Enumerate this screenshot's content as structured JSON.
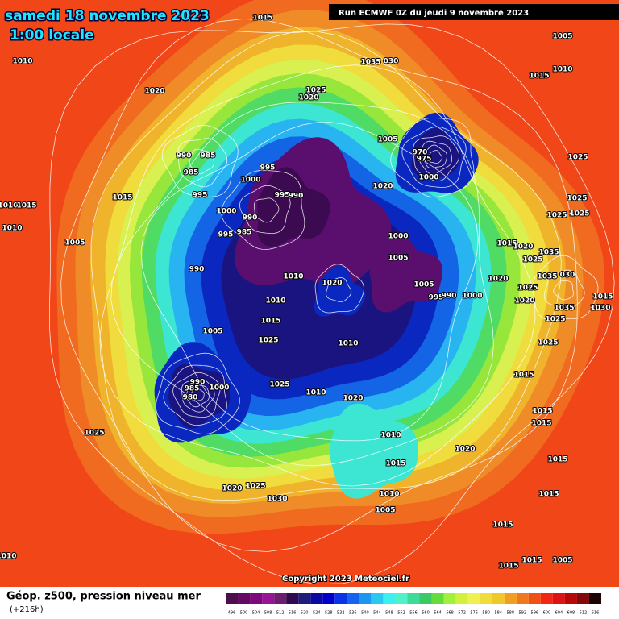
{
  "header": {
    "date": "samedi 18 novembre 2023",
    "time": "1:00 locale",
    "run": "Run ECMWF 0Z du jeudi 9 novembre 2023"
  },
  "copyright": "Copyright 2023 Meteociel.fr",
  "footer": {
    "title": "Géop. z500, pression niveau mer",
    "lead": "(+216h)"
  },
  "legend": {
    "values": [
      "496",
      "500",
      "504",
      "508",
      "512",
      "516",
      "520",
      "524",
      "528",
      "532",
      "536",
      "540",
      "544",
      "548",
      "552",
      "556",
      "560",
      "564",
      "568",
      "572",
      "576",
      "580",
      "584",
      "588",
      "592",
      "596",
      "600",
      "604",
      "608",
      "612",
      "616"
    ],
    "colors": [
      "#4b0f4b",
      "#640a64",
      "#7d0a7d",
      "#961496",
      "#6e1e6e",
      "#320a50",
      "#1e1e78",
      "#0a0aa0",
      "#0000c8",
      "#0a32e6",
      "#1464f0",
      "#1e96f0",
      "#28c8f0",
      "#3cf0f0",
      "#50f0c8",
      "#3cdc96",
      "#3cc864",
      "#64dc3c",
      "#a0f03c",
      "#d2f03c",
      "#f0f050",
      "#f0dc3c",
      "#f0c828",
      "#f0a01e",
      "#f0781e",
      "#f05014",
      "#f02814",
      "#dc1414",
      "#b40a0a",
      "#820a0a",
      "#1e0505"
    ]
  },
  "isobar_labels": [
    "1015",
    "1010",
    "1020",
    "1025",
    "1020",
    "1035",
    "030",
    "1005",
    "1010",
    "1015",
    "990",
    "985",
    "985",
    "995",
    "995",
    "1000",
    "995",
    "990",
    "1000",
    "990",
    "995",
    "985",
    "1015",
    "1005",
    "1010",
    "1015",
    "1010",
    "1005",
    "970",
    "975",
    "1000",
    "1020",
    "1000",
    "1005",
    "1005",
    "995",
    "990",
    "1000",
    "1025",
    "1025",
    "1025",
    "1025",
    "1015",
    "1020",
    "1025",
    "1035",
    "1020",
    "1025",
    "1035",
    "030",
    "1020",
    "1035",
    "1015",
    "1030",
    "1025",
    "1025",
    "990",
    "1010",
    "1020",
    "1010",
    "1005",
    "1015",
    "1025",
    "1010",
    "990",
    "985",
    "980",
    "1000",
    "1025",
    "1010",
    "1020",
    "1015",
    "1015",
    "1015",
    "1025",
    "1010",
    "1020",
    "1015",
    "1015",
    "1020",
    "1025",
    "1030",
    "1010",
    "1005",
    "1015",
    "1015",
    "1010",
    "1015",
    "1015",
    "1005"
  ]
}
